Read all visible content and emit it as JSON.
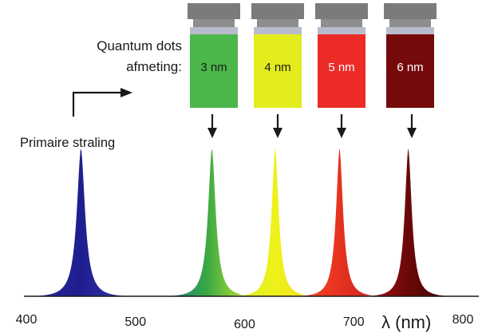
{
  "labels": {
    "quantum_line1": "Quantum dots",
    "quantum_line2": "afmeting:",
    "primary": "Primaire straling"
  },
  "vials": [
    {
      "label": "3 nm",
      "color": "#4bb74a",
      "text_color": "#1a1a1a"
    },
    {
      "label": "4 nm",
      "color": "#e3ec1c",
      "text_color": "#1a1a1a"
    },
    {
      "label": "5 nm",
      "color": "#ec2a26",
      "text_color": "#ffffff"
    },
    {
      "label": "6 nm",
      "color": "#760a0a",
      "text_color": "#ffffff"
    }
  ],
  "axis": {
    "ticks": [
      "400",
      "500",
      "600",
      "700",
      "800"
    ],
    "label": "λ (nm)"
  },
  "chart_data": {
    "type": "area",
    "xlabel": "λ (nm)",
    "xlim": [
      400,
      800
    ],
    "grid": false,
    "series": [
      {
        "peak_nm": 450,
        "relative_height": 0.98,
        "color": "#22229b"
      },
      {
        "peak_nm": 570,
        "relative_height": 0.98,
        "color": "#3fae3f"
      },
      {
        "peak_nm": 628,
        "relative_height": 0.98,
        "color": "#e5ee1b"
      },
      {
        "peak_nm": 687,
        "relative_height": 0.98,
        "color": "#ee2a23"
      },
      {
        "peak_nm": 750,
        "relative_height": 0.98,
        "color": "#6b0909"
      }
    ]
  }
}
